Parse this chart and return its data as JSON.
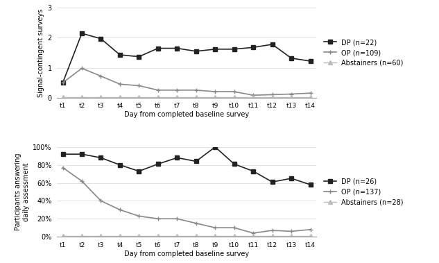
{
  "x_labels": [
    "t1",
    "t2",
    "t3",
    "t4",
    "t5",
    "t6",
    "t7",
    "t8",
    "t9",
    "t10",
    "t11",
    "t12",
    "t13",
    "t14"
  ],
  "top": {
    "DP": [
      0.5,
      2.15,
      1.97,
      1.43,
      1.37,
      1.65,
      1.65,
      1.55,
      1.62,
      1.62,
      1.68,
      1.78,
      1.32,
      1.22
    ],
    "OP": [
      0.5,
      0.98,
      0.72,
      0.45,
      0.4,
      0.25,
      0.25,
      0.25,
      0.2,
      0.2,
      0.08,
      0.1,
      0.12,
      0.15
    ],
    "Abstainers": [
      0.02,
      0.02,
      0.02,
      0.02,
      0.02,
      0.02,
      0.02,
      0.02,
      0.02,
      0.02,
      0.02,
      0.02,
      0.02,
      0.02
    ],
    "ylabel": "Signal-contingent surveys",
    "ylim": [
      0,
      3
    ],
    "yticks": [
      0,
      1,
      2,
      3
    ],
    "legend": [
      "DP (n=22)",
      "OP (n=109)",
      "Abstainers (n=60)"
    ]
  },
  "bottom": {
    "DP": [
      92,
      92,
      88,
      80,
      73,
      81,
      88,
      84,
      100,
      81,
      73,
      61,
      65,
      58
    ],
    "OP": [
      77,
      62,
      40,
      30,
      23,
      20,
      20,
      15,
      10,
      10,
      4,
      7,
      6,
      8
    ],
    "Abstainers": [
      1,
      1,
      1,
      1,
      1,
      1,
      1,
      1,
      1,
      1,
      1,
      1,
      1,
      1
    ],
    "ylabel": "Participants answering\ndaily assessment",
    "ylim": [
      0,
      100
    ],
    "yticks": [
      0,
      20,
      40,
      60,
      80,
      100
    ],
    "yticklabels": [
      "0%",
      "20%",
      "40%",
      "60%",
      "80%",
      "100%"
    ],
    "legend": [
      "DP (n=26)",
      "OP (n=137)",
      "Abstainers (n=28)"
    ]
  },
  "xlabel": "Day from completed baseline survey",
  "color_DP": "#222222",
  "color_OP": "#888888",
  "color_Abstainers": "#bbbbbb",
  "marker_DP": "s",
  "marker_OP": "+",
  "marker_Abstainers": "^",
  "background": "#ffffff",
  "figsize": [
    6.33,
    3.79
  ],
  "dpi": 100
}
